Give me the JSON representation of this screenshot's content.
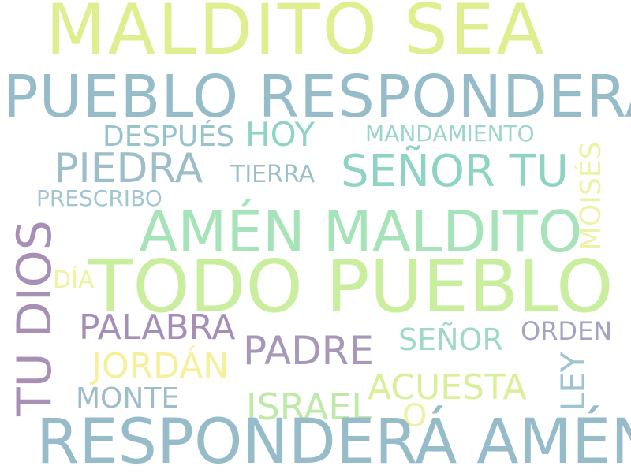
{
  "words": {
    "maldito_sea": {
      "text": "MALDITO SEA",
      "color": "#dfee8f"
    },
    "pueblo_respondera": {
      "text": "PUEBLO RESPONDERÁ",
      "color": "#96bbc9"
    },
    "despues": {
      "text": "DESPUÉS",
      "color": "#96c4c8"
    },
    "hoy": {
      "text": "HOY",
      "color": "#8fd3c4"
    },
    "mandamiento": {
      "text": "MANDAMIENTO",
      "color": "#9bd6c8"
    },
    "moises": {
      "text": "MOISÉS",
      "color": "#eef2a6"
    },
    "piedra": {
      "text": "PIEDRA",
      "color": "#9dbec8"
    },
    "tierra": {
      "text": "TIERRA",
      "color": "#9dbec8"
    },
    "senor_tu": {
      "text": "SEÑOR TU",
      "color": "#8fd3c4"
    },
    "prescribo": {
      "text": "PRESCRIBO",
      "color": "#a2c6cf"
    },
    "amen_maldito": {
      "text": "AMÉN MALDITO",
      "color": "#a6e3b8"
    },
    "tu_dios": {
      "text": "TU DIOS",
      "color": "#a78fb6"
    },
    "dia": {
      "text": "DÍA",
      "color": "#eef5a0"
    },
    "todo_pueblo": {
      "text": "TODO PUEBLO",
      "color": "#c9ee9d"
    },
    "palabra": {
      "text": "PALABRA",
      "color": "#a68fb6"
    },
    "padre": {
      "text": "PADRE",
      "color": "#a797b8"
    },
    "senor": {
      "text": "SEÑOR",
      "color": "#9fd9c6"
    },
    "orden": {
      "text": "ORDEN",
      "color": "#a4a4c2"
    },
    "jordan": {
      "text": "JORDÁN",
      "color": "#f7f09a"
    },
    "ley": {
      "text": "LEY",
      "color": "#9fc4cf"
    },
    "acuesta": {
      "text": "ACUESTA",
      "color": "#d9ef9a"
    },
    "monte": {
      "text": "MONTE",
      "color": "#9dbec8"
    },
    "israel": {
      "text": "ISRAEL",
      "color": "#bfe9a8"
    },
    "o": {
      "text": "O",
      "color": "#eef2a6"
    },
    "respondera_amen": {
      "text": "RESPONDERÁ AMÉN",
      "color": "#96bbc9"
    }
  }
}
